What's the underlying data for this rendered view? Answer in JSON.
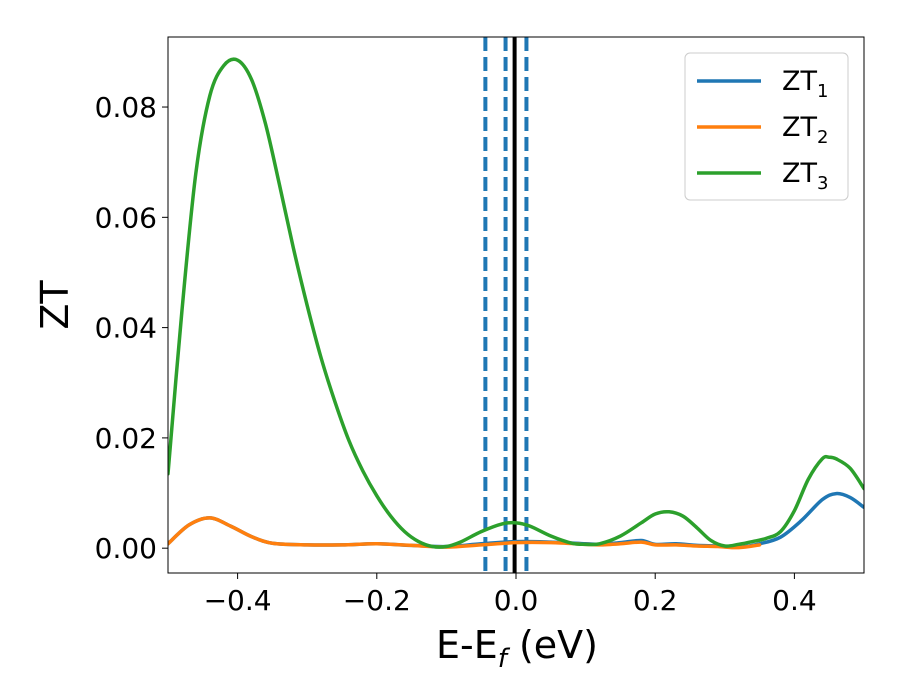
{
  "chart_data": {
    "type": "line",
    "xlabel": "E-E",
    "xlabel_sub": "f",
    "xlabel_unit": " (eV)",
    "ylabel": "ZT",
    "xlim": [
      -0.5,
      0.5
    ],
    "ylim": [
      -0.0045,
      0.0927
    ],
    "xticks": [
      -0.4,
      -0.2,
      0.0,
      0.2,
      0.4
    ],
    "xtick_labels": [
      "−0.4",
      "−0.2",
      "0.0",
      "0.2",
      "0.4"
    ],
    "yticks": [
      0.0,
      0.02,
      0.04,
      0.06,
      0.08
    ],
    "ytick_labels": [
      "0.00",
      "0.02",
      "0.04",
      "0.06",
      "0.08"
    ],
    "grid": false,
    "legend_position": "upper-right",
    "vlines": [
      {
        "x": -0.044,
        "style": "dashed",
        "color": "#1f77b4"
      },
      {
        "x": -0.015,
        "style": "dashed",
        "color": "#1f77b4"
      },
      {
        "x": -0.002,
        "style": "solid",
        "color": "#000000"
      },
      {
        "x": 0.015,
        "style": "dashed",
        "color": "#1f77b4"
      }
    ],
    "series": [
      {
        "name": "ZT",
        "name_sub": "1",
        "color": "#1f77b4",
        "x": [
          -0.5,
          -0.47,
          -0.44,
          -0.41,
          -0.38,
          -0.35,
          -0.3,
          -0.25,
          -0.2,
          -0.15,
          -0.1,
          -0.05,
          0.0,
          0.05,
          0.1,
          0.12,
          0.15,
          0.18,
          0.2,
          0.23,
          0.26,
          0.29,
          0.32,
          0.35,
          0.38,
          0.41,
          0.44,
          0.46,
          0.48,
          0.5
        ],
        "y": [
          0.0008,
          0.0042,
          0.0055,
          0.004,
          0.0021,
          0.0009,
          0.0006,
          0.0006,
          0.0008,
          0.0005,
          0.0003,
          0.0008,
          0.0012,
          0.0011,
          0.0008,
          0.0007,
          0.001,
          0.0014,
          0.0007,
          0.0008,
          0.0005,
          0.0004,
          0.0002,
          0.0008,
          0.002,
          0.005,
          0.0088,
          0.0099,
          0.0092,
          0.0074
        ]
      },
      {
        "name": "ZT",
        "name_sub": "2",
        "color": "#ff7f0e",
        "x": [
          -0.5,
          -0.47,
          -0.44,
          -0.41,
          -0.38,
          -0.35,
          -0.3,
          -0.25,
          -0.2,
          -0.15,
          -0.1,
          -0.05,
          0.0,
          0.05,
          0.1,
          0.12,
          0.15,
          0.18,
          0.2,
          0.23,
          0.26,
          0.29,
          0.32,
          0.35
        ],
        "y": [
          0.0008,
          0.0042,
          0.0055,
          0.004,
          0.0021,
          0.0009,
          0.0006,
          0.0006,
          0.0008,
          0.0005,
          0.0002,
          0.0006,
          0.001,
          0.001,
          0.0007,
          0.0006,
          0.0008,
          0.0011,
          0.0006,
          0.0006,
          0.0004,
          0.0003,
          0.0001,
          0.0006
        ]
      },
      {
        "name": "ZT",
        "name_sub": "3",
        "color": "#2ca02c",
        "x": [
          -0.5,
          -0.48,
          -0.46,
          -0.44,
          -0.42,
          -0.4,
          -0.38,
          -0.36,
          -0.34,
          -0.32,
          -0.3,
          -0.28,
          -0.26,
          -0.24,
          -0.22,
          -0.2,
          -0.18,
          -0.16,
          -0.14,
          -0.12,
          -0.1,
          -0.08,
          -0.05,
          -0.02,
          0.0,
          0.02,
          0.05,
          0.08,
          0.1,
          0.12,
          0.15,
          0.18,
          0.2,
          0.22,
          0.24,
          0.26,
          0.28,
          0.3,
          0.32,
          0.34,
          0.36,
          0.38,
          0.4,
          0.42,
          0.44,
          0.45,
          0.46,
          0.48,
          0.5
        ],
        "y": [
          0.0135,
          0.043,
          0.068,
          0.082,
          0.0875,
          0.0885,
          0.085,
          0.077,
          0.066,
          0.0545,
          0.044,
          0.0345,
          0.0265,
          0.0195,
          0.014,
          0.0095,
          0.0058,
          0.003,
          0.0012,
          0.0003,
          0.0003,
          0.0011,
          0.003,
          0.0044,
          0.0046,
          0.004,
          0.0022,
          0.0009,
          0.0007,
          0.0008,
          0.0022,
          0.0046,
          0.0062,
          0.0066,
          0.0058,
          0.0037,
          0.0014,
          0.0004,
          0.0007,
          0.0012,
          0.0018,
          0.003,
          0.0068,
          0.0125,
          0.0162,
          0.0165,
          0.0162,
          0.0145,
          0.0108
        ]
      }
    ]
  }
}
